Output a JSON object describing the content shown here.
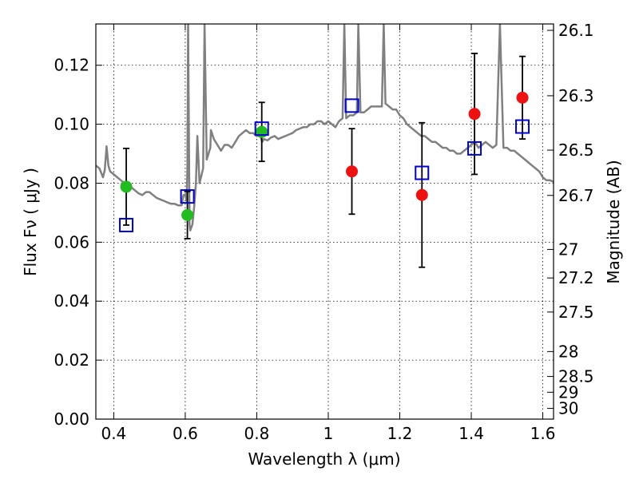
{
  "chart_data": {
    "type": "scatter",
    "title": "",
    "xlabel": "Wavelength  λ (μm)",
    "ylabel": "Flux  Fν  ( μJy )",
    "y2label": "Magnitude (AB)",
    "xlim": [
      0.35,
      1.63
    ],
    "ylim": [
      0.0,
      0.134
    ],
    "grid": true,
    "legend": "none",
    "x_ticks": [
      {
        "v": 0.4,
        "label": "0.4"
      },
      {
        "v": 0.6,
        "label": "0.6"
      },
      {
        "v": 0.8,
        "label": "0.8"
      },
      {
        "v": 1.0,
        "label": "1"
      },
      {
        "v": 1.2,
        "label": "1.2"
      },
      {
        "v": 1.4,
        "label": "1.4"
      },
      {
        "v": 1.6,
        "label": "1.6"
      }
    ],
    "y_ticks": [
      {
        "v": 0.0,
        "label": "0.00"
      },
      {
        "v": 0.02,
        "label": "0.02"
      },
      {
        "v": 0.04,
        "label": "0.04"
      },
      {
        "v": 0.06,
        "label": "0.06"
      },
      {
        "v": 0.08,
        "label": "0.08"
      },
      {
        "v": 0.1,
        "label": "0.10"
      },
      {
        "v": 0.12,
        "label": "0.12"
      }
    ],
    "y2_ticks": [
      {
        "mag": 26.1,
        "label": "26.1"
      },
      {
        "mag": 26.3,
        "label": "26.3"
      },
      {
        "mag": 26.5,
        "label": "26.5"
      },
      {
        "mag": 26.7,
        "label": "26.7"
      },
      {
        "mag": 27.0,
        "label": "27"
      },
      {
        "mag": 27.2,
        "label": "27.2"
      },
      {
        "mag": 27.5,
        "label": "27.5"
      },
      {
        "mag": 28.0,
        "label": "28"
      },
      {
        "mag": 28.5,
        "label": "28.5"
      },
      {
        "mag": 29.0,
        "label": "29"
      },
      {
        "mag": 30.0,
        "label": "30"
      }
    ],
    "observed": [
      {
        "x": 0.435,
        "y": 0.0788,
        "yerr": 0.013,
        "color": "#22bb22"
      },
      {
        "x": 0.606,
        "y": 0.0692,
        "yerr": 0.008,
        "color": "#22bb22"
      },
      {
        "x": 0.814,
        "y": 0.0974,
        "yerr": 0.01,
        "color": "#22bb22"
      },
      {
        "x": 1.066,
        "y": 0.084,
        "yerr": 0.0145,
        "color": "#ee1111"
      },
      {
        "x": 1.262,
        "y": 0.076,
        "yerr": 0.0245,
        "color": "#ee1111"
      },
      {
        "x": 1.409,
        "y": 0.1035,
        "yerr": 0.0205,
        "color": "#ee1111"
      },
      {
        "x": 1.543,
        "y": 0.109,
        "yerr": 0.014,
        "color": "#ee1111"
      }
    ],
    "model_bands": [
      {
        "x": 0.435,
        "y": 0.0658
      },
      {
        "x": 0.606,
        "y": 0.0755
      },
      {
        "x": 0.814,
        "y": 0.0985
      },
      {
        "x": 1.066,
        "y": 0.1063
      },
      {
        "x": 1.262,
        "y": 0.0835
      },
      {
        "x": 1.409,
        "y": 0.0918
      },
      {
        "x": 1.543,
        "y": 0.0992
      }
    ],
    "model_spectrum": {
      "color": "#808080",
      "points": [
        [
          0.35,
          0.086
        ],
        [
          0.36,
          0.085
        ],
        [
          0.37,
          0.082
        ],
        [
          0.375,
          0.0845
        ],
        [
          0.38,
          0.0925
        ],
        [
          0.385,
          0.086
        ],
        [
          0.39,
          0.084
        ],
        [
          0.4,
          0.083
        ],
        [
          0.41,
          0.082
        ],
        [
          0.42,
          0.081
        ],
        [
          0.43,
          0.08
        ],
        [
          0.44,
          0.079
        ],
        [
          0.45,
          0.0785
        ],
        [
          0.46,
          0.0775
        ],
        [
          0.47,
          0.0765
        ],
        [
          0.48,
          0.076
        ],
        [
          0.49,
          0.077
        ],
        [
          0.5,
          0.077
        ],
        [
          0.51,
          0.076
        ],
        [
          0.52,
          0.075
        ],
        [
          0.53,
          0.0745
        ],
        [
          0.54,
          0.074
        ],
        [
          0.55,
          0.0735
        ],
        [
          0.56,
          0.073
        ],
        [
          0.57,
          0.073
        ],
        [
          0.58,
          0.0725
        ],
        [
          0.59,
          0.0725
        ],
        [
          0.595,
          0.076
        ],
        [
          0.6,
          0.076
        ],
        [
          0.604,
          0.074
        ],
        [
          0.606,
          0.085
        ],
        [
          0.608,
          0.134
        ],
        [
          0.612,
          0.066
        ],
        [
          0.614,
          0.064
        ],
        [
          0.62,
          0.066
        ],
        [
          0.625,
          0.072
        ],
        [
          0.63,
          0.08
        ],
        [
          0.634,
          0.096
        ],
        [
          0.64,
          0.08
        ],
        [
          0.65,
          0.085
        ],
        [
          0.654,
          0.134
        ],
        [
          0.66,
          0.088
        ],
        [
          0.67,
          0.092
        ],
        [
          0.672,
          0.098
        ],
        [
          0.68,
          0.095
        ],
        [
          0.69,
          0.093
        ],
        [
          0.7,
          0.091
        ],
        [
          0.71,
          0.093
        ],
        [
          0.72,
          0.093
        ],
        [
          0.73,
          0.092
        ],
        [
          0.74,
          0.094
        ],
        [
          0.75,
          0.096
        ],
        [
          0.76,
          0.097
        ],
        [
          0.77,
          0.098
        ],
        [
          0.78,
          0.097
        ],
        [
          0.79,
          0.097
        ],
        [
          0.8,
          0.096
        ],
        [
          0.81,
          0.096
        ],
        [
          0.815,
          0.094
        ],
        [
          0.82,
          0.095
        ],
        [
          0.83,
          0.0945
        ],
        [
          0.84,
          0.0955
        ],
        [
          0.85,
          0.096
        ],
        [
          0.86,
          0.095
        ],
        [
          0.87,
          0.0955
        ],
        [
          0.88,
          0.096
        ],
        [
          0.89,
          0.0965
        ],
        [
          0.9,
          0.097
        ],
        [
          0.91,
          0.098
        ],
        [
          0.92,
          0.0985
        ],
        [
          0.93,
          0.099
        ],
        [
          0.94,
          0.099
        ],
        [
          0.95,
          0.1
        ],
        [
          0.96,
          0.1
        ],
        [
          0.97,
          0.101
        ],
        [
          0.98,
          0.101
        ],
        [
          0.99,
          0.1
        ],
        [
          1.0,
          0.101
        ],
        [
          1.01,
          0.1
        ],
        [
          1.02,
          0.099
        ],
        [
          1.03,
          0.101
        ],
        [
          1.04,
          0.102
        ],
        [
          1.045,
          0.134
        ],
        [
          1.05,
          0.102
        ],
        [
          1.06,
          0.103
        ],
        [
          1.07,
          0.103
        ],
        [
          1.08,
          0.104
        ],
        [
          1.084,
          0.134
        ],
        [
          1.09,
          0.104
        ],
        [
          1.1,
          0.104
        ],
        [
          1.11,
          0.105
        ],
        [
          1.12,
          0.106
        ],
        [
          1.13,
          0.106
        ],
        [
          1.14,
          0.106
        ],
        [
          1.15,
          0.106
        ],
        [
          1.155,
          0.134
        ],
        [
          1.16,
          0.107
        ],
        [
          1.17,
          0.106
        ],
        [
          1.18,
          0.105
        ],
        [
          1.19,
          0.105
        ],
        [
          1.2,
          0.103
        ],
        [
          1.21,
          0.102
        ],
        [
          1.22,
          0.1
        ],
        [
          1.23,
          0.099
        ],
        [
          1.24,
          0.098
        ],
        [
          1.25,
          0.097
        ],
        [
          1.26,
          0.096
        ],
        [
          1.27,
          0.096
        ],
        [
          1.28,
          0.095
        ],
        [
          1.29,
          0.094
        ],
        [
          1.3,
          0.094
        ],
        [
          1.31,
          0.093
        ],
        [
          1.32,
          0.092
        ],
        [
          1.33,
          0.092
        ],
        [
          1.34,
          0.091
        ],
        [
          1.35,
          0.091
        ],
        [
          1.36,
          0.09
        ],
        [
          1.37,
          0.09
        ],
        [
          1.38,
          0.091
        ],
        [
          1.39,
          0.092
        ],
        [
          1.4,
          0.093
        ],
        [
          1.41,
          0.094
        ],
        [
          1.42,
          0.092
        ],
        [
          1.43,
          0.093
        ],
        [
          1.44,
          0.094
        ],
        [
          1.45,
          0.093
        ],
        [
          1.46,
          0.092
        ],
        [
          1.47,
          0.093
        ],
        [
          1.48,
          0.134
        ],
        [
          1.49,
          0.092
        ],
        [
          1.5,
          0.092
        ],
        [
          1.51,
          0.091
        ],
        [
          1.52,
          0.091
        ],
        [
          1.53,
          0.09
        ],
        [
          1.54,
          0.089
        ],
        [
          1.55,
          0.088
        ],
        [
          1.56,
          0.087
        ],
        [
          1.57,
          0.086
        ],
        [
          1.58,
          0.085
        ],
        [
          1.59,
          0.084
        ],
        [
          1.6,
          0.082
        ],
        [
          1.61,
          0.081
        ],
        [
          1.62,
          0.081
        ],
        [
          1.63,
          0.0805
        ]
      ]
    }
  }
}
